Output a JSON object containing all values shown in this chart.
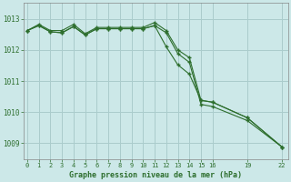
{
  "title": "Graphe pression niveau de la mer (hPa)",
  "background_color": "#cce8e8",
  "grid_color": "#aacccc",
  "line_color": "#2d6e2d",
  "x_ticks": [
    0,
    1,
    2,
    3,
    4,
    5,
    6,
    7,
    8,
    9,
    10,
    11,
    12,
    13,
    14,
    15,
    16,
    19,
    22
  ],
  "x_tick_labels": [
    "0",
    "1",
    "2",
    "3",
    "4",
    "5",
    "6",
    "7",
    "8",
    "9",
    "10",
    "11",
    "12",
    "13",
    "14",
    "15",
    "16",
    "19",
    "22"
  ],
  "ylim": [
    1008.5,
    1013.5
  ],
  "yticks": [
    1009,
    1010,
    1011,
    1012,
    1013
  ],
  "xlim": [
    -0.3,
    22.5
  ],
  "line1_x": [
    0,
    1,
    2,
    3,
    4,
    5,
    6,
    7,
    8,
    9,
    10,
    11,
    12,
    13,
    14,
    15,
    16,
    19,
    22
  ],
  "line1_y": [
    1012.62,
    1012.82,
    1012.62,
    1012.62,
    1012.82,
    1012.52,
    1012.72,
    1012.72,
    1012.72,
    1012.72,
    1012.72,
    1012.88,
    1012.62,
    1012.0,
    1011.75,
    1010.38,
    1010.32,
    1009.82,
    1008.88
  ],
  "line2_x": [
    0,
    1,
    2,
    3,
    4,
    5,
    6,
    7,
    8,
    9,
    10,
    11,
    12,
    13,
    14,
    15,
    16,
    19,
    22
  ],
  "line2_y": [
    1012.62,
    1012.78,
    1012.58,
    1012.55,
    1012.75,
    1012.48,
    1012.68,
    1012.68,
    1012.68,
    1012.68,
    1012.68,
    1012.78,
    1012.55,
    1011.88,
    1011.6,
    1010.25,
    1010.18,
    1009.73,
    1008.88
  ],
  "line3_x": [
    0,
    1,
    2,
    3,
    4,
    5,
    6,
    7,
    8,
    9,
    10,
    11,
    12,
    13,
    14,
    15,
    16,
    19,
    22
  ],
  "line3_y": [
    1012.62,
    1012.78,
    1012.58,
    1012.55,
    1012.75,
    1012.48,
    1012.68,
    1012.68,
    1012.68,
    1012.68,
    1012.68,
    1012.78,
    1012.1,
    1011.52,
    1011.22,
    1010.38,
    1010.32,
    1009.82,
    1008.88
  ],
  "figsize": [
    3.2,
    2.0
  ],
  "dpi": 100
}
